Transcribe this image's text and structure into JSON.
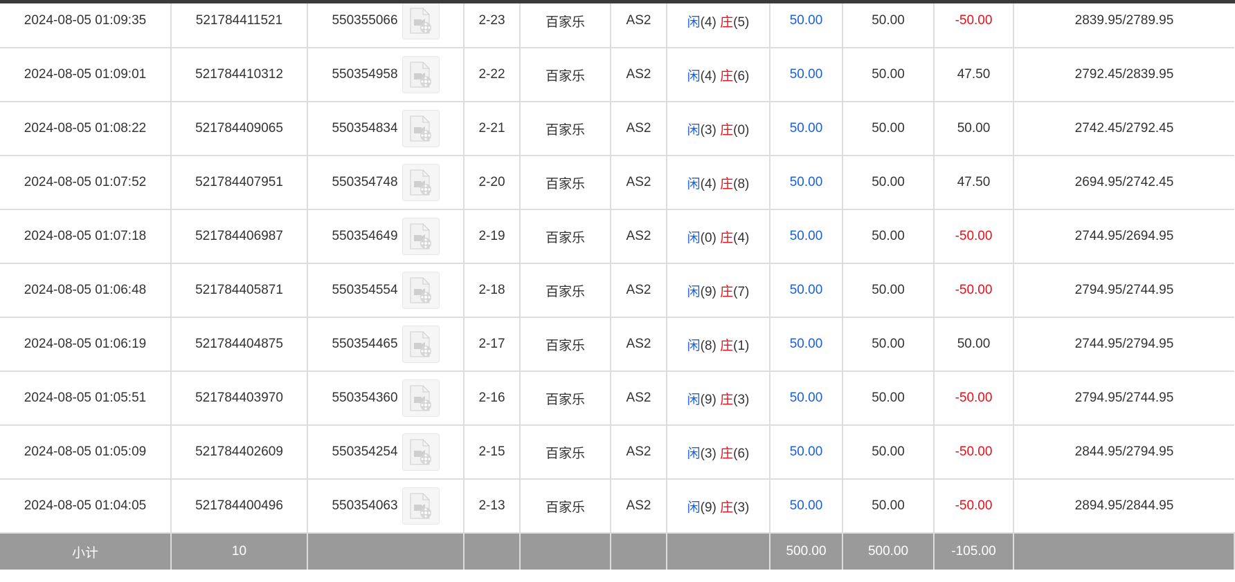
{
  "rows": [
    {
      "time": "2024-08-05 01:09:35",
      "bet_id": "521784411521",
      "round_id": "550355066",
      "shoe": "2-23",
      "game": "百家乐",
      "table": "AS2",
      "player_label": "闲",
      "player": "(4)",
      "banker_label": "庄",
      "banker": "(5)",
      "bet": "50.00",
      "valid": "50.00",
      "win": "-50.00",
      "balance": "2839.95/2789.95"
    },
    {
      "time": "2024-08-05 01:09:01",
      "bet_id": "521784410312",
      "round_id": "550354958",
      "shoe": "2-22",
      "game": "百家乐",
      "table": "AS2",
      "player_label": "闲",
      "player": "(4)",
      "banker_label": "庄",
      "banker": "(6)",
      "bet": "50.00",
      "valid": "50.00",
      "win": "47.50",
      "balance": "2792.45/2839.95"
    },
    {
      "time": "2024-08-05 01:08:22",
      "bet_id": "521784409065",
      "round_id": "550354834",
      "shoe": "2-21",
      "game": "百家乐",
      "table": "AS2",
      "player_label": "闲",
      "player": "(3)",
      "banker_label": "庄",
      "banker": "(0)",
      "bet": "50.00",
      "valid": "50.00",
      "win": "50.00",
      "balance": "2742.45/2792.45"
    },
    {
      "time": "2024-08-05 01:07:52",
      "bet_id": "521784407951",
      "round_id": "550354748",
      "shoe": "2-20",
      "game": "百家乐",
      "table": "AS2",
      "player_label": "闲",
      "player": "(4)",
      "banker_label": "庄",
      "banker": "(8)",
      "bet": "50.00",
      "valid": "50.00",
      "win": "47.50",
      "balance": "2694.95/2742.45"
    },
    {
      "time": "2024-08-05 01:07:18",
      "bet_id": "521784406987",
      "round_id": "550354649",
      "shoe": "2-19",
      "game": "百家乐",
      "table": "AS2",
      "player_label": "闲",
      "player": "(0)",
      "banker_label": "庄",
      "banker": "(4)",
      "bet": "50.00",
      "valid": "50.00",
      "win": "-50.00",
      "balance": "2744.95/2694.95"
    },
    {
      "time": "2024-08-05 01:06:48",
      "bet_id": "521784405871",
      "round_id": "550354554",
      "shoe": "2-18",
      "game": "百家乐",
      "table": "AS2",
      "player_label": "闲",
      "player": "(9)",
      "banker_label": "庄",
      "banker": "(7)",
      "bet": "50.00",
      "valid": "50.00",
      "win": "-50.00",
      "balance": "2794.95/2744.95"
    },
    {
      "time": "2024-08-05 01:06:19",
      "bet_id": "521784404875",
      "round_id": "550354465",
      "shoe": "2-17",
      "game": "百家乐",
      "table": "AS2",
      "player_label": "闲",
      "player": "(8)",
      "banker_label": "庄",
      "banker": "(1)",
      "bet": "50.00",
      "valid": "50.00",
      "win": "50.00",
      "balance": "2744.95/2794.95"
    },
    {
      "time": "2024-08-05 01:05:51",
      "bet_id": "521784403970",
      "round_id": "550354360",
      "shoe": "2-16",
      "game": "百家乐",
      "table": "AS2",
      "player_label": "闲",
      "player": "(9)",
      "banker_label": "庄",
      "banker": "(3)",
      "bet": "50.00",
      "valid": "50.00",
      "win": "-50.00",
      "balance": "2794.95/2744.95"
    },
    {
      "time": "2024-08-05 01:05:09",
      "bet_id": "521784402609",
      "round_id": "550354254",
      "shoe": "2-15",
      "game": "百家乐",
      "table": "AS2",
      "player_label": "闲",
      "player": "(3)",
      "banker_label": "庄",
      "banker": "(6)",
      "bet": "50.00",
      "valid": "50.00",
      "win": "-50.00",
      "balance": "2844.95/2794.95"
    },
    {
      "time": "2024-08-05 01:04:05",
      "bet_id": "521784400496",
      "round_id": "550354063",
      "shoe": "2-13",
      "game": "百家乐",
      "table": "AS2",
      "player_label": "闲",
      "player": "(9)",
      "banker_label": "庄",
      "banker": "(3)",
      "bet": "50.00",
      "valid": "50.00",
      "win": "-50.00",
      "balance": "2894.95/2844.95"
    }
  ],
  "subtotal": {
    "label": "小计",
    "count": "10",
    "bet": "500.00",
    "valid": "500.00",
    "win": "-105.00"
  },
  "colors": {
    "blue": "#1a5fe0",
    "red": "#e8101a",
    "footer_bg": "#9a9a9a"
  },
  "icons": {
    "replay": "video-file-icon"
  }
}
